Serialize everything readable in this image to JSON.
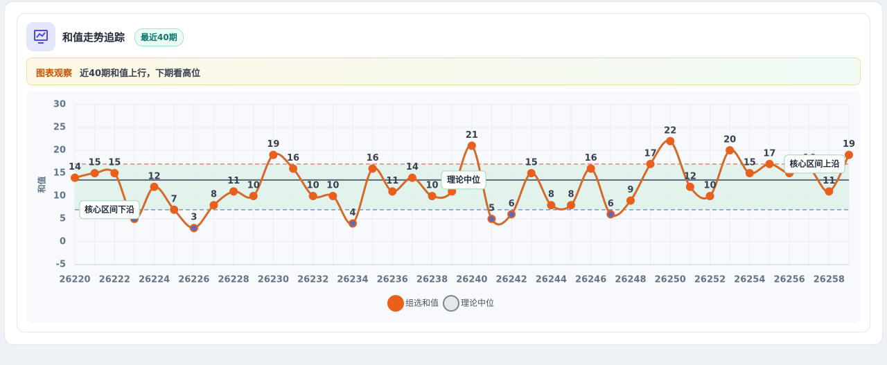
{
  "header": {
    "title": "和值走势追踪",
    "badge": "最近40期"
  },
  "insight": {
    "label": "图表观察",
    "text": "近40期和值上行，下期看高位"
  },
  "chart_data": {
    "type": "line",
    "y_label": "和值",
    "categories": [
      26220,
      null,
      26222,
      null,
      26224,
      null,
      26226,
      null,
      26228,
      null,
      26230,
      null,
      26232,
      null,
      26234,
      null,
      26236,
      null,
      26238,
      null,
      26240,
      null,
      26242,
      null,
      26244,
      null,
      26246,
      null,
      26248,
      null,
      26250,
      null,
      26252,
      null,
      26254,
      null,
      26256,
      null,
      26258,
      null
    ],
    "series": [
      {
        "name": "组选和值",
        "color": "#e8601c",
        "low_point_color": "#5b6bb5",
        "values": [
          14,
          15,
          15,
          5,
          12,
          7,
          3,
          8,
          11,
          10,
          19,
          16,
          10,
          10,
          4,
          16,
          11,
          14,
          10,
          11,
          21,
          5,
          6,
          15,
          8,
          8,
          16,
          6,
          9,
          17,
          22,
          12,
          10,
          20,
          15,
          17,
          15,
          16,
          11,
          19
        ]
      }
    ],
    "median": {
      "name": "理论中位",
      "value": 13.5,
      "color": "#5b6478"
    },
    "band": {
      "lower": 7,
      "upper": 17,
      "lower_label": "核心区间下沿",
      "upper_label": "核心区间上沿",
      "lower_color": "#6b8fc4",
      "upper_color": "#e07a7a",
      "fill": "#d8f1e6"
    },
    "ylim": [
      -5,
      30
    ],
    "yticks": [
      -5,
      0,
      5,
      10,
      15,
      20,
      25,
      30
    ],
    "grid": true
  }
}
